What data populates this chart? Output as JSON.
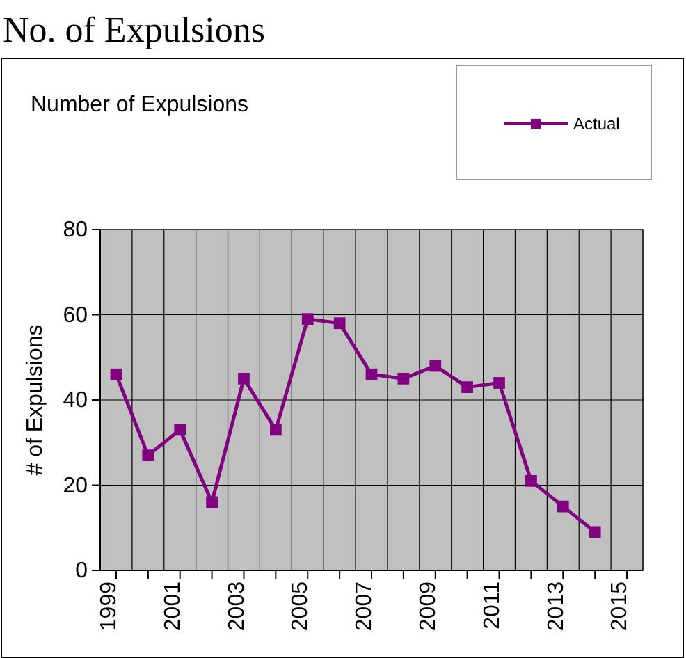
{
  "chart_data": {
    "type": "line",
    "title": "No. of Expulsions",
    "subtitle": "Number of Expulsions",
    "ylabel": "# of Expulsions",
    "categories": [
      "1999",
      null,
      "2001",
      null,
      "2003",
      null,
      "2005",
      null,
      "2007",
      null,
      "2009",
      null,
      "2011",
      null,
      "2013",
      null,
      "2015"
    ],
    "series": [
      {
        "name": "Actual",
        "color": "#800080",
        "values": [
          46,
          27,
          33,
          16,
          45,
          33,
          59,
          58,
          46,
          45,
          48,
          43,
          44,
          21,
          15,
          9,
          null
        ]
      }
    ],
    "ylim": [
      0,
      80
    ],
    "yticks": [
      0,
      20,
      40,
      60,
      80
    ],
    "grid": true,
    "legend": "top right",
    "marker": "square",
    "line_style": "solid"
  }
}
